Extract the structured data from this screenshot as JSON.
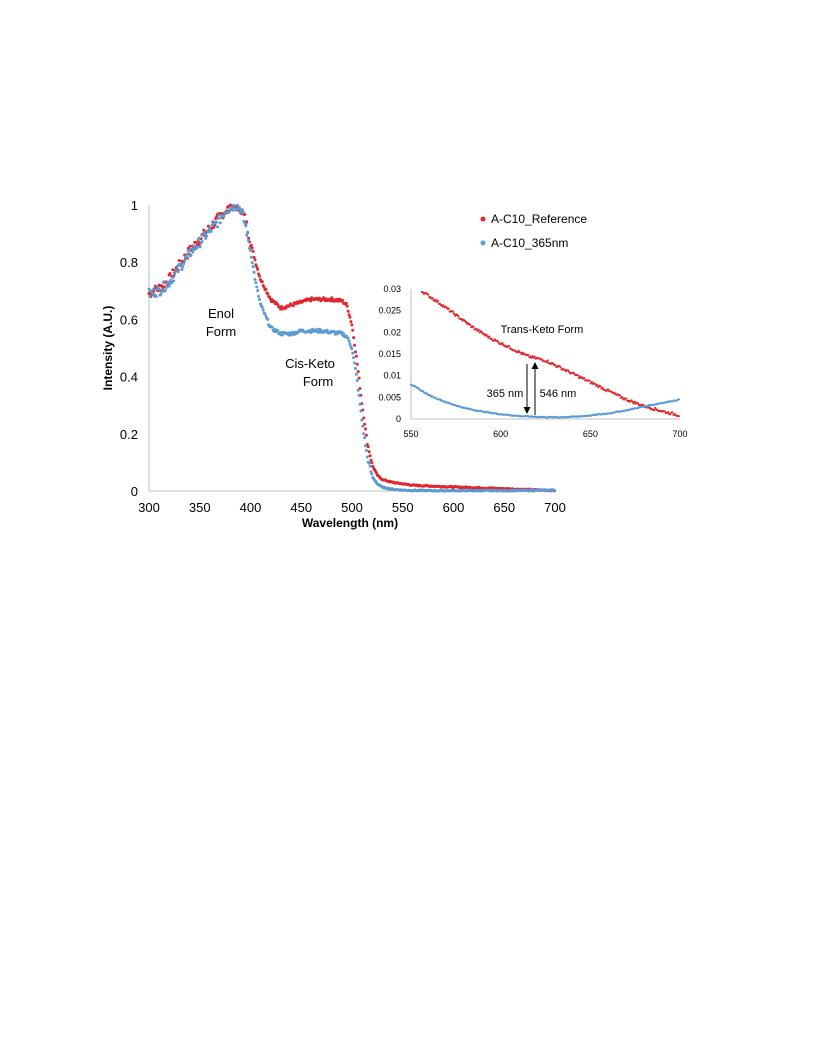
{
  "colors": {
    "reference": "#e0272e",
    "irradiated": "#5b9bd5"
  },
  "legend": {
    "series_reference": "A-C10_Reference",
    "series_365": "A-C10_365nm"
  },
  "annotations": {
    "enol": [
      "Enol",
      "Form"
    ],
    "cis_keto": [
      "Cis-Keto",
      "Form"
    ],
    "trans_keto": "Trans-Keto Form",
    "arrow_365": "365 nm",
    "arrow_546": "546 nm"
  },
  "chart_data": [
    {
      "type": "scatter",
      "title": "",
      "xlabel": "Wavelength (nm)",
      "ylabel": "Intensity (A.U.)",
      "xlim": [
        300,
        700
      ],
      "ylim": [
        0,
        1
      ],
      "x_ticks": [
        "300",
        "350",
        "400",
        "450",
        "500",
        "550",
        "600",
        "650",
        "700"
      ],
      "y_ticks": [
        "0",
        "0.2",
        "0.4",
        "0.6",
        "0.8",
        "1"
      ],
      "grid": false,
      "legend_position": "top-right",
      "series": [
        {
          "name": "A-C10_Reference",
          "x": [
            300,
            310,
            320,
            330,
            340,
            350,
            360,
            370,
            375,
            380,
            385,
            390,
            395,
            400,
            405,
            410,
            420,
            430,
            440,
            450,
            460,
            470,
            480,
            490,
            495,
            500,
            505,
            510,
            515,
            520,
            525,
            530,
            540,
            550,
            560,
            580,
            600,
            620,
            650,
            680,
            700
          ],
          "y": [
            0.69,
            0.71,
            0.74,
            0.79,
            0.84,
            0.88,
            0.92,
            0.96,
            0.98,
            0.99,
            1.0,
            0.99,
            0.95,
            0.87,
            0.8,
            0.74,
            0.67,
            0.64,
            0.65,
            0.66,
            0.67,
            0.67,
            0.67,
            0.665,
            0.65,
            0.58,
            0.45,
            0.3,
            0.17,
            0.09,
            0.055,
            0.04,
            0.03,
            0.025,
            0.02,
            0.017,
            0.014,
            0.012,
            0.008,
            0.004,
            0.002
          ]
        },
        {
          "name": "A-C10_365nm",
          "x": [
            300,
            310,
            320,
            330,
            340,
            350,
            360,
            370,
            375,
            380,
            385,
            390,
            395,
            400,
            405,
            410,
            420,
            430,
            440,
            450,
            460,
            470,
            480,
            490,
            495,
            500,
            505,
            510,
            515,
            520,
            525,
            530,
            540,
            550,
            560,
            580,
            600,
            620,
            650,
            680,
            700
          ],
          "y": [
            0.69,
            0.7,
            0.73,
            0.78,
            0.83,
            0.87,
            0.91,
            0.95,
            0.98,
            0.99,
            1.0,
            0.99,
            0.93,
            0.84,
            0.73,
            0.65,
            0.57,
            0.55,
            0.55,
            0.56,
            0.56,
            0.56,
            0.555,
            0.55,
            0.54,
            0.5,
            0.39,
            0.24,
            0.12,
            0.05,
            0.025,
            0.013,
            0.006,
            0.003,
            0.002,
            0.001,
            0.001,
            0.001,
            0.001,
            0.002,
            0.003
          ]
        }
      ]
    },
    {
      "type": "scatter",
      "title": "",
      "xlabel": "",
      "ylabel": "",
      "xlim": [
        550,
        700
      ],
      "ylim": [
        0,
        0.03
      ],
      "x_ticks": [
        "550",
        "600",
        "650",
        "700"
      ],
      "y_ticks": [
        "0",
        "0.005",
        "0.01",
        "0.015",
        "0.02",
        "0.025",
        "0.03"
      ],
      "grid": false,
      "series": [
        {
          "name": "A-C10_Reference",
          "x": [
            556,
            565,
            575,
            585,
            595,
            605,
            615,
            620,
            625,
            630,
            640,
            650,
            660,
            670,
            680,
            690,
            700
          ],
          "y": [
            0.0295,
            0.027,
            0.024,
            0.021,
            0.0185,
            0.0165,
            0.0145,
            0.014,
            0.0135,
            0.0125,
            0.0105,
            0.0085,
            0.0065,
            0.0045,
            0.003,
            0.0018,
            0.0008
          ]
        },
        {
          "name": "A-C10_365nm",
          "x": [
            550,
            560,
            570,
            580,
            590,
            600,
            610,
            620,
            630,
            640,
            650,
            660,
            670,
            680,
            690,
            700
          ],
          "y": [
            0.008,
            0.0055,
            0.0038,
            0.0025,
            0.0017,
            0.0011,
            0.0007,
            0.0005,
            0.0004,
            0.0005,
            0.0008,
            0.0013,
            0.002,
            0.0029,
            0.0037,
            0.0045
          ]
        }
      ]
    }
  ]
}
